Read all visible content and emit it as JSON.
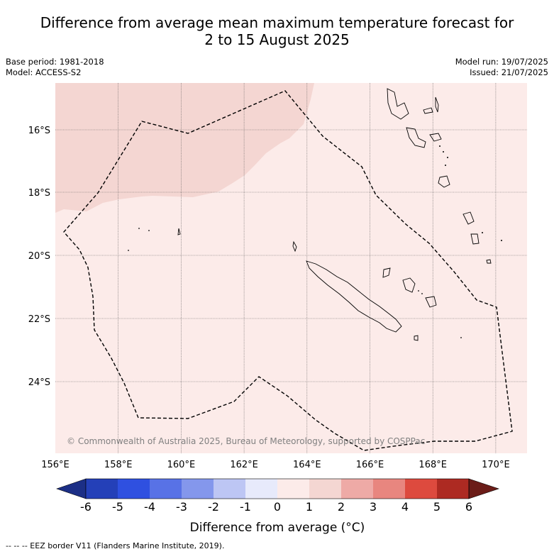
{
  "title_line1": "Difference from average mean maximum temperature forecast for",
  "title_line2": "2 to 15 August 2025",
  "meta": {
    "base_period": "Base period: 1981-2018",
    "model": "Model: ACCESS-S2",
    "model_run": "Model run: 19/07/2025",
    "issued": "Issued: 21/07/2025"
  },
  "map": {
    "lon_labels": [
      "156°E",
      "158°E",
      "160°E",
      "162°E",
      "164°E",
      "166°E",
      "168°E",
      "170°E"
    ],
    "lat_labels": [
      "16°S",
      "18°S",
      "20°S",
      "22°S",
      "24°S"
    ],
    "copyright": "© Commonwealth of Australia 2025, Bureau of Meteorology, supported by COSPPac",
    "region_colors": {
      "zero_to_one": "#fcebe9",
      "one_to_two": "#f4d6d2"
    },
    "gridlines": true
  },
  "colorbar": {
    "labels": [
      "-6",
      "-5",
      "-4",
      "-3",
      "-2",
      "-1",
      "0",
      "1",
      "2",
      "3",
      "4",
      "5",
      "6"
    ],
    "colors": [
      "#1c2f86",
      "#2440b8",
      "#2f50e0",
      "#5872e6",
      "#8497ec",
      "#bdc6f4",
      "#e7eafb",
      "#fcebe9",
      "#f4d6d2",
      "#eeaaa6",
      "#e8867f",
      "#dd4a3e",
      "#ad2a22",
      "#6b1c18"
    ],
    "title": "Difference from average (°C)"
  },
  "footer": "--  --  -- EEZ border V11 (Flanders Marine Institute, 2019)."
}
